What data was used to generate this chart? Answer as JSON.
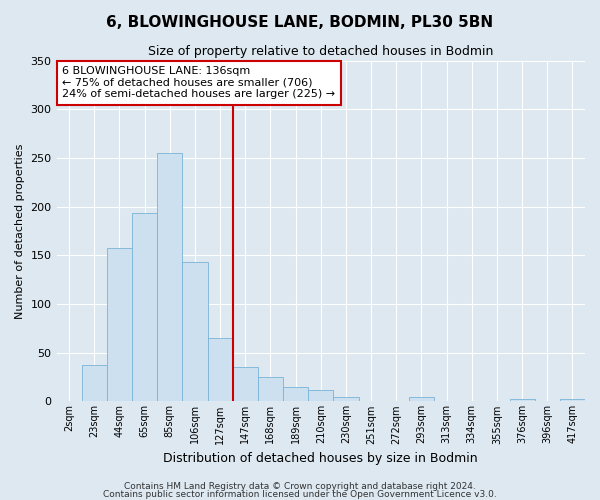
{
  "title": "6, BLOWINGHOUSE LANE, BODMIN, PL30 5BN",
  "subtitle": "Size of property relative to detached houses in Bodmin",
  "xlabel": "Distribution of detached houses by size in Bodmin",
  "ylabel": "Number of detached properties",
  "bar_labels": [
    "2sqm",
    "23sqm",
    "44sqm",
    "65sqm",
    "85sqm",
    "106sqm",
    "127sqm",
    "147sqm",
    "168sqm",
    "189sqm",
    "210sqm",
    "230sqm",
    "251sqm",
    "272sqm",
    "293sqm",
    "313sqm",
    "334sqm",
    "355sqm",
    "376sqm",
    "396sqm",
    "417sqm"
  ],
  "bar_values": [
    0,
    37,
    158,
    193,
    255,
    143,
    65,
    35,
    25,
    15,
    12,
    4,
    0,
    0,
    5,
    0,
    0,
    0,
    2,
    0,
    2
  ],
  "bar_color": "#cce0f0",
  "bar_edge_color": "#7ab4d8",
  "vline_index": 7,
  "vline_color": "#cc0000",
  "annotation_title": "6 BLOWINGHOUSE LANE: 136sqm",
  "annotation_line1": "← 75% of detached houses are smaller (706)",
  "annotation_line2": "24% of semi-detached houses are larger (225) →",
  "annotation_box_color": "#ffffff",
  "annotation_box_edge": "#cc0000",
  "ylim": [
    0,
    350
  ],
  "yticks": [
    0,
    50,
    100,
    150,
    200,
    250,
    300,
    350
  ],
  "bg_color": "#dde8f0",
  "grid_color": "#ffffff",
  "footer1": "Contains HM Land Registry data © Crown copyright and database right 2024.",
  "footer2": "Contains public sector information licensed under the Open Government Licence v3.0."
}
